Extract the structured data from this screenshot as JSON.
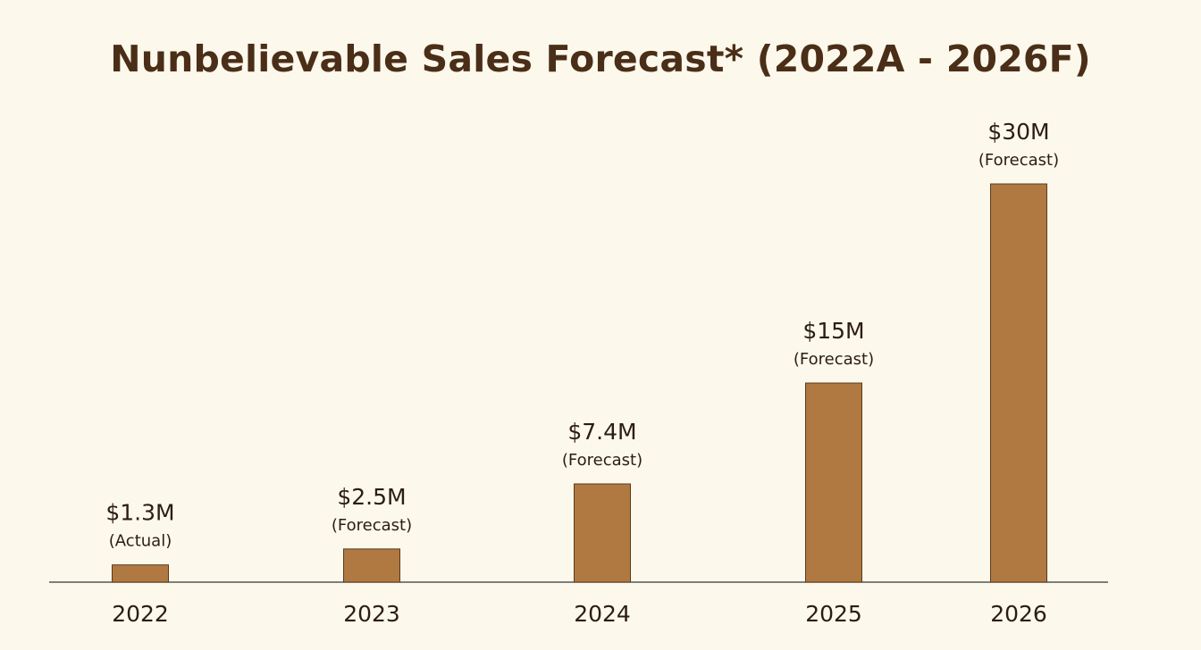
{
  "chart_data": {
    "type": "bar",
    "title": "Nunbelievable Sales Forecast* (2022A - 2026F)",
    "categories": [
      "2022",
      "2023",
      "2024",
      "2025",
      "2026"
    ],
    "values": [
      1.3,
      2.5,
      7.4,
      15,
      30
    ],
    "value_labels": [
      "$1.3M",
      "$2.5M",
      "$7.4M",
      "$15M",
      "$30M"
    ],
    "annotations": [
      "(Actual)",
      "(Forecast)",
      "(Forecast)",
      "(Forecast)",
      "(Forecast)"
    ],
    "xlabel": "",
    "ylabel": "",
    "ylim": [
      0,
      30
    ],
    "grid": false,
    "bar_color": "#b07941",
    "bar_edge_color": "#5a3a1e",
    "background_color": "#fdf8ec",
    "title_color": "#4a2e17"
  }
}
